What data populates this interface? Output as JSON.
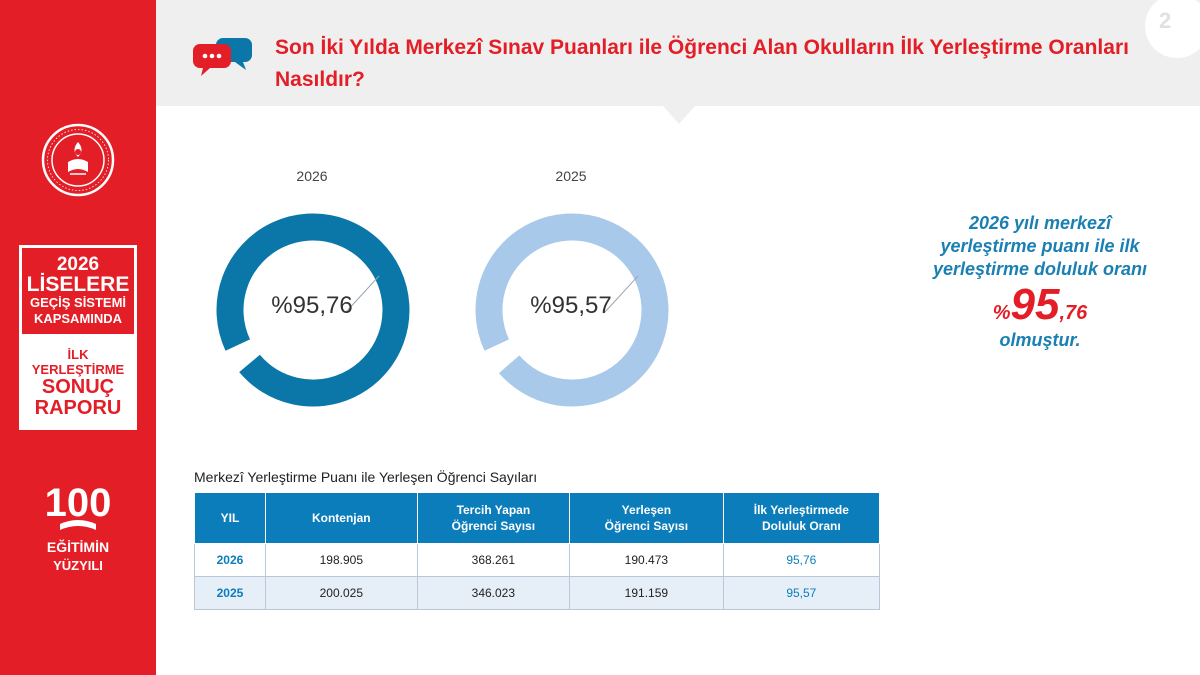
{
  "header": {
    "title": "Son İki Yılda Merkezî Sınav Puanları ile Öğrenci Alan Okulların İlk Yerleştirme Oranları Nasıldır?",
    "page_number": "2"
  },
  "sidebar": {
    "report_box": {
      "line1": "2026",
      "line2": "LİSELERE",
      "line3": "GEÇİŞ SİSTEMİ",
      "line4": "KAPSAMINDA",
      "line5": "İLK",
      "line6": "YERLEŞTİRME",
      "line7": "SONUÇ",
      "line8": "RAPORU"
    },
    "logo_100": {
      "number": "100",
      "line1": "EĞİTİMİN",
      "line2": "YÜZYILI"
    }
  },
  "colors": {
    "brand_red": "#e41e26",
    "donut_2026": "#0b76a8",
    "donut_2025": "#a9c9ea",
    "accent_blue": "#1a7fb3"
  },
  "chart_data": [
    {
      "type": "pie",
      "title": "2026",
      "label": "%95,76",
      "values": [
        95.76,
        4.24
      ]
    },
    {
      "type": "pie",
      "title": "2025",
      "label": "%95,57",
      "values": [
        95.57,
        4.43
      ]
    }
  ],
  "callout": {
    "line1": "2026 yılı merkezî",
    "line2": "yerleştirme puanı ile ilk",
    "line3": "yerleştirme doluluk oranı",
    "percent_sign": "%",
    "value_int": "95",
    "value_dec": ",76",
    "line5": "olmuştur."
  },
  "table": {
    "title": "Merkezî Yerleştirme Puanı ile Yerleşen Öğrenci Sayıları",
    "headers": {
      "h1": "YIL",
      "h2": "Kontenjan",
      "h3a": "Tercih Yapan",
      "h3b": "Öğrenci Sayısı",
      "h4a": "Yerleşen",
      "h4b": "Öğrenci Sayısı",
      "h5a": "İlk Yerleştirmede",
      "h5b": "Doluluk Oranı"
    },
    "rows": [
      [
        "2026",
        "198.905",
        "368.261",
        "190.473",
        "95,76"
      ],
      [
        "2025",
        "200.025",
        "346.023",
        "191.159",
        "95,57"
      ]
    ]
  }
}
